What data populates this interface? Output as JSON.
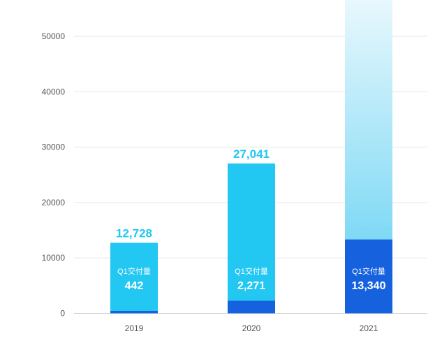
{
  "chart_data": {
    "type": "bar",
    "categories": [
      "2019",
      "2020",
      "2021"
    ],
    "ylim": [
      0,
      56000
    ],
    "yticks": [
      0,
      10000,
      20000,
      30000,
      40000,
      50000
    ],
    "grid": true,
    "series": [
      {
        "values": [
          12728,
          27041,
          null
        ],
        "total_labels": [
          "12,728",
          "27,041",
          ""
        ]
      },
      {
        "values": [
          442,
          2271,
          13340
        ],
        "caption": "Q1交付量",
        "labels": [
          "442",
          "2,271",
          "13,340"
        ]
      }
    ]
  },
  "colors": {
    "total_bar": "#22c7f2",
    "q1_bar": "#1662de",
    "fade_top": "#e8f8fd",
    "fade_bottom": "#7fd9f5",
    "grid": "#e6e6e6",
    "baseline": "#cccccc"
  }
}
